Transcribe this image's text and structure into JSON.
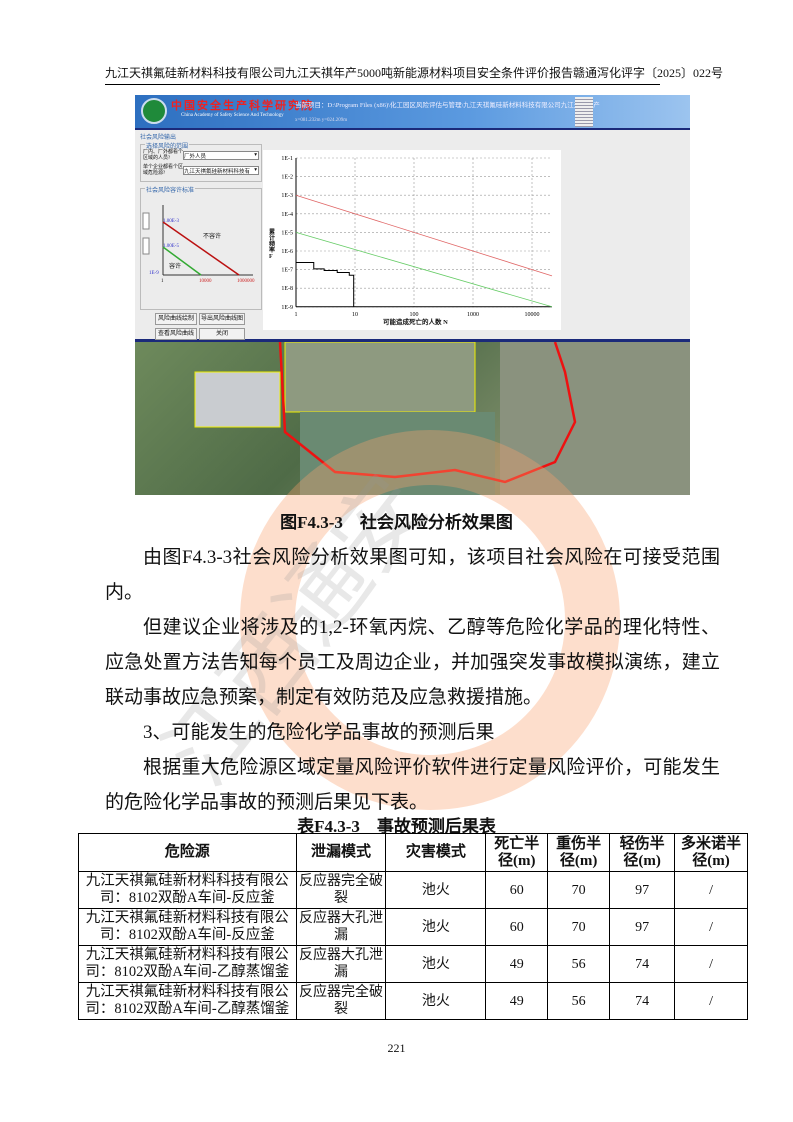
{
  "header": {
    "left": "九江天祺氟硅新材料科技有限公司九江天祺年产5000吨新能源材料项目安全条件评价报告",
    "right": "赣通泻化评字〔2025〕022号"
  },
  "screenshot": {
    "banner_title": "中国安全生产科学研究院",
    "banner_subtitle": "China Academy of Safety Science And Technology",
    "current_project": "当前项目：D:\\Program Files (x86)\\化工园区风险评估与管理\\九江天祺氟硅新材料科技有限公司九江天祺年产",
    "coords": "x=081.232m  y=024.209m",
    "window_title": "社会风险输出",
    "group_scope": "选择风险的范围",
    "select1_label": "厂内、厂外都看个区域的人员?",
    "select1_value": "厂外人员",
    "select2_label": "单个企业都看个区域危险源?",
    "select2_value": "九江天祺氟硅新材料科技有",
    "group_criteria": "社会风险容许标准",
    "crit_upper": "1.00E-3",
    "crit_lower": "1.00E-5",
    "crit_min": "1E-9",
    "label_unacceptable": "不容许",
    "label_acceptable": "容许",
    "crit_x": [
      "1",
      "10000",
      "1000000"
    ],
    "buttons": [
      "风险曲线绘制",
      "导出风险曲线图",
      "查看风险曲线",
      "关闭"
    ],
    "fn_chart": {
      "type": "line",
      "xlabel": "可能造成死亡的人数 N",
      "ylabel": "累计频率 F",
      "x_scale": "log",
      "y_scale": "log",
      "x_ticks": [
        "1",
        "10",
        "100",
        "1000",
        "10000"
      ],
      "y_ticks": [
        "1E-1",
        "1E-2",
        "1E-3",
        "1E-4",
        "1E-5",
        "1E-6",
        "1E-7",
        "1E-8",
        "1E-9"
      ],
      "grid": true,
      "series": [
        {
          "color": "#e06666",
          "points": [
            [
              1,
              0.001
            ],
            [
              10000,
              1e-07
            ]
          ]
        },
        {
          "color": "#66cc66",
          "points": [
            [
              1,
              1e-05
            ],
            [
              10000,
              1e-09
            ]
          ]
        },
        {
          "color": "#000000",
          "step": true,
          "points": [
            [
              1,
              2.4e-07
            ],
            [
              2,
              1.1e-07
            ],
            [
              3,
              9e-08
            ],
            [
              5,
              7e-08
            ],
            [
              8,
              5e-08
            ],
            [
              9.5,
              1e-09
            ]
          ]
        }
      ]
    }
  },
  "figure_caption": "图F4.3-3　社会风险分析效果图",
  "paragraphs": [
    "由图F4.3-3社会风险分析效果图可知，该项目社会风险在可接受范围内。",
    "但建议企业将涉及的1,2-环氧丙烷、乙醇等危险化学品的理化特性、应急处置方法告知每个员工及周边企业，并加强突发事故模拟演练，建立联动事故应急预案，制定有效防范及应急救援措施。",
    "3、可能发生的危险化学品事故的预测后果",
    "根据重大危险源区域定量风险评价软件进行定量风险评价，可能发生的危险化学品事故的预测后果见下表。"
  ],
  "table": {
    "caption": "表F4.3-3　事故预测后果表",
    "headers": [
      "危险源",
      "泄漏模式",
      "灾害模式",
      "死亡半径(m)",
      "重伤半径(m)",
      "轻伤半径(m)",
      "多米诺半径(m)"
    ],
    "rows": [
      [
        "九江天祺氟硅新材料科技有限公司：8102双酚A车间-反应釜",
        "反应器完全破裂",
        "池火",
        "60",
        "70",
        "97",
        "/"
      ],
      [
        "九江天祺氟硅新材料科技有限公司：8102双酚A车间-反应釜",
        "反应器大孔泄漏",
        "池火",
        "60",
        "70",
        "97",
        "/"
      ],
      [
        "九江天祺氟硅新材料科技有限公司：8102双酚A车间-乙醇蒸馏釜",
        "反应器大孔泄漏",
        "池火",
        "49",
        "56",
        "74",
        "/"
      ],
      [
        "九江天祺氟硅新材料科技有限公司：8102双酚A车间-乙醇蒸馏釜",
        "反应器完全破裂",
        "池火",
        "49",
        "56",
        "74",
        "/"
      ]
    ]
  },
  "page_number": "221",
  "watermark_text": "江西通安"
}
